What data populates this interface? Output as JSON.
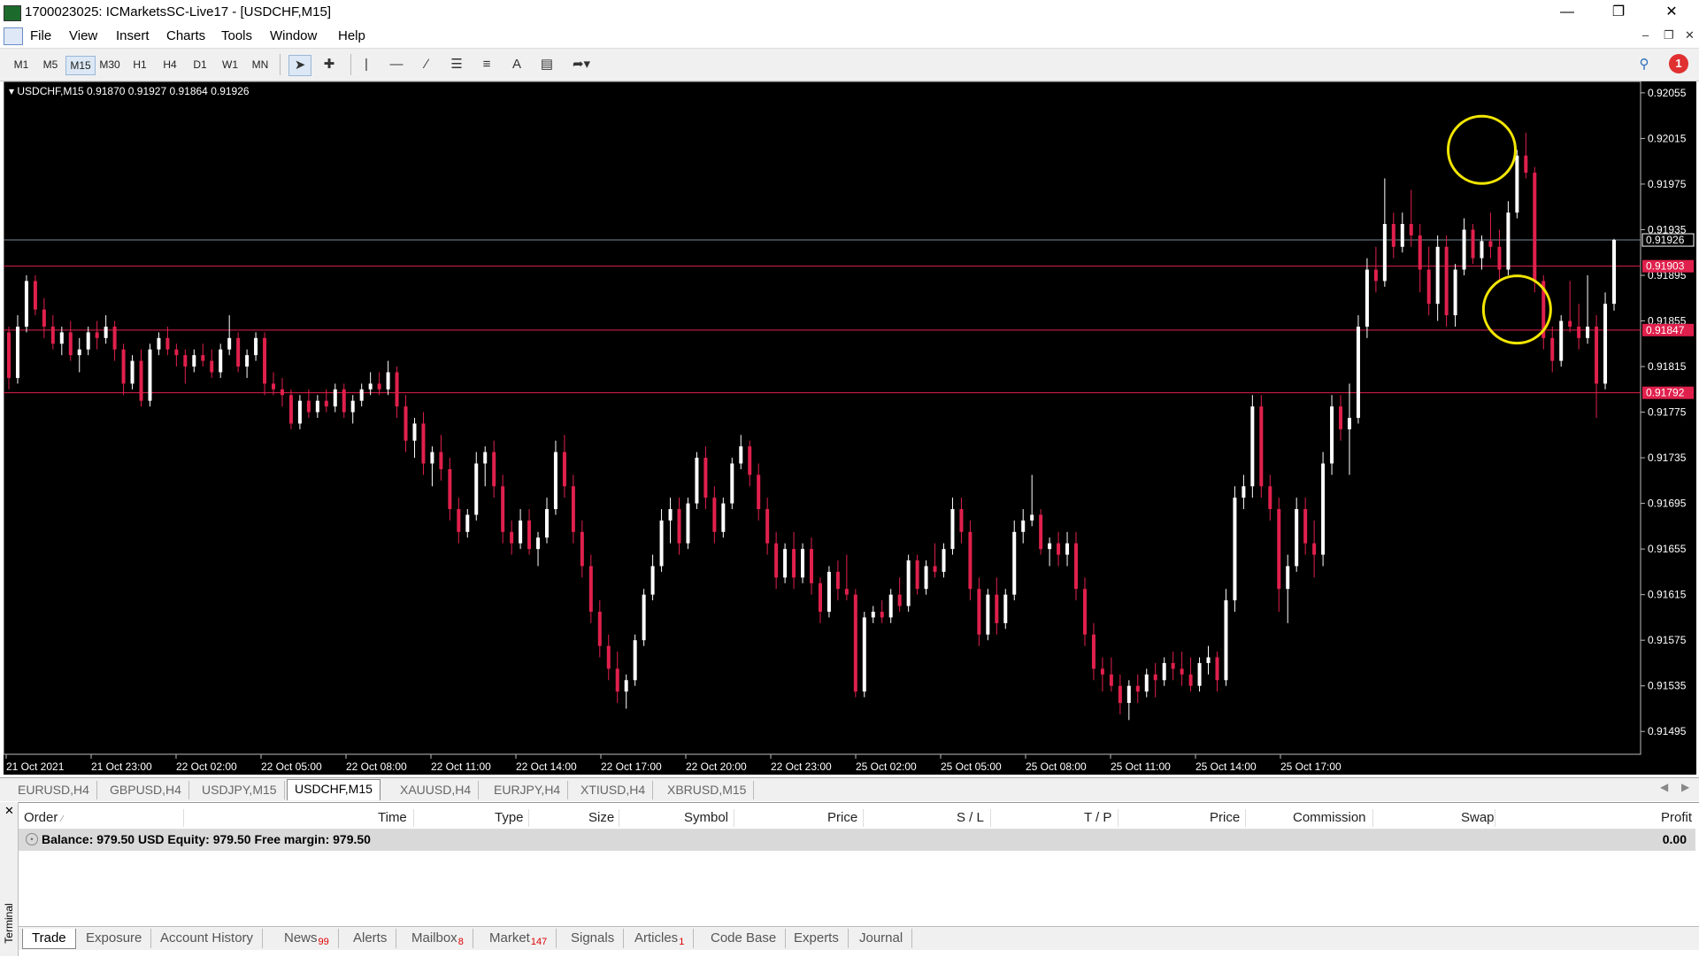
{
  "window": {
    "title": "1700023025: ICMarketsSC-Live17 - [USDCHF,M15]"
  },
  "menu": [
    "File",
    "View",
    "Insert",
    "Charts",
    "Tools",
    "Window",
    "Help"
  ],
  "timeframes": [
    "M1",
    "M5",
    "M15",
    "M30",
    "H1",
    "H4",
    "D1",
    "W1",
    "MN"
  ],
  "active_timeframe": "M15",
  "notification_count": "1",
  "chart": {
    "header": "USDCHF,M15  0.91870 0.91927 0.91864 0.91926",
    "background": "#000000",
    "bull_color": "#ffffff",
    "bear_color": "#e0204c",
    "level_color": "#e0204c",
    "highlight_color": "#f2e600"
  },
  "chart_data": {
    "type": "candlestick",
    "symbol": "USDCHF",
    "timeframe": "M15",
    "ylim": [
      0.91475,
      0.92065
    ],
    "y_ticks": [
      "0.92055",
      "0.92015",
      "0.91975",
      "0.91935",
      "0.91895",
      "0.91855",
      "0.91815",
      "0.91775",
      "0.91735",
      "0.91695",
      "0.91655",
      "0.91615",
      "0.91575",
      "0.91535",
      "0.91495"
    ],
    "x_ticks": [
      "21 Oct 2021",
      "21 Oct 23:00",
      "22 Oct 02:00",
      "22 Oct 05:00",
      "22 Oct 08:00",
      "22 Oct 11:00",
      "22 Oct 14:00",
      "22 Oct 17:00",
      "22 Oct 20:00",
      "22 Oct 23:00",
      "25 Oct 02:00",
      "25 Oct 05:00",
      "25 Oct 08:00",
      "25 Oct 11:00",
      "25 Oct 14:00",
      "25 Oct 17:00"
    ],
    "price_levels": [
      "0.91903",
      "0.91847",
      "0.91792"
    ],
    "bid_line": "0.91926",
    "highlights": [
      {
        "x_index": 167,
        "price": 0.92005
      },
      {
        "x_index": 171,
        "price": 0.91865
      }
    ],
    "candles": [
      [
        0.91845,
        0.9185,
        0.91795,
        0.91805
      ],
      [
        0.91805,
        0.9186,
        0.918,
        0.9185
      ],
      [
        0.9185,
        0.91895,
        0.91845,
        0.9189
      ],
      [
        0.9189,
        0.91895,
        0.9186,
        0.91865
      ],
      [
        0.91865,
        0.91875,
        0.9184,
        0.9185
      ],
      [
        0.9185,
        0.9186,
        0.9183,
        0.91835
      ],
      [
        0.91835,
        0.9185,
        0.91825,
        0.91845
      ],
      [
        0.91845,
        0.91855,
        0.9182,
        0.91825
      ],
      [
        0.91825,
        0.9184,
        0.9181,
        0.9183
      ],
      [
        0.9183,
        0.9185,
        0.91825,
        0.91845
      ],
      [
        0.91845,
        0.91855,
        0.9183,
        0.9184
      ],
      [
        0.9184,
        0.9186,
        0.91835,
        0.9185
      ],
      [
        0.9185,
        0.91855,
        0.9182,
        0.9183
      ],
      [
        0.9183,
        0.91835,
        0.9179,
        0.918
      ],
      [
        0.918,
        0.91825,
        0.91795,
        0.9182
      ],
      [
        0.9182,
        0.9183,
        0.9178,
        0.91785
      ],
      [
        0.91785,
        0.91835,
        0.9178,
        0.9183
      ],
      [
        0.9183,
        0.91845,
        0.91825,
        0.9184
      ],
      [
        0.9184,
        0.9185,
        0.91825,
        0.9183
      ],
      [
        0.9183,
        0.91835,
        0.91815,
        0.91825
      ],
      [
        0.91825,
        0.9183,
        0.918,
        0.91815
      ],
      [
        0.91815,
        0.9183,
        0.9181,
        0.91825
      ],
      [
        0.91825,
        0.91835,
        0.91815,
        0.9182
      ],
      [
        0.9182,
        0.9183,
        0.91805,
        0.9181
      ],
      [
        0.9181,
        0.91835,
        0.91805,
        0.9183
      ],
      [
        0.9183,
        0.9186,
        0.91825,
        0.9184
      ],
      [
        0.9184,
        0.91845,
        0.9181,
        0.91815
      ],
      [
        0.91815,
        0.9183,
        0.91805,
        0.91825
      ],
      [
        0.91825,
        0.91845,
        0.9182,
        0.9184
      ],
      [
        0.9184,
        0.91845,
        0.9179,
        0.918
      ],
      [
        0.918,
        0.9181,
        0.9179,
        0.91795
      ],
      [
        0.91795,
        0.91805,
        0.9178,
        0.9179
      ],
      [
        0.9179,
        0.91795,
        0.9176,
        0.91765
      ],
      [
        0.91765,
        0.9179,
        0.9176,
        0.91785
      ],
      [
        0.91785,
        0.91795,
        0.9177,
        0.91775
      ],
      [
        0.91775,
        0.9179,
        0.9177,
        0.91785
      ],
      [
        0.91785,
        0.91795,
        0.91775,
        0.9178
      ],
      [
        0.9178,
        0.918,
        0.91775,
        0.91795
      ],
      [
        0.91795,
        0.918,
        0.9177,
        0.91775
      ],
      [
        0.91775,
        0.9179,
        0.91765,
        0.91785
      ],
      [
        0.91785,
        0.918,
        0.9178,
        0.91795
      ],
      [
        0.91795,
        0.9181,
        0.9179,
        0.918
      ],
      [
        0.918,
        0.9181,
        0.9179,
        0.91795
      ],
      [
        0.91795,
        0.9182,
        0.9179,
        0.9181
      ],
      [
        0.9181,
        0.91815,
        0.9177,
        0.9178
      ],
      [
        0.9178,
        0.9179,
        0.9174,
        0.9175
      ],
      [
        0.9175,
        0.9177,
        0.91735,
        0.91765
      ],
      [
        0.91765,
        0.91775,
        0.9172,
        0.9173
      ],
      [
        0.9173,
        0.91745,
        0.9171,
        0.9174
      ],
      [
        0.9174,
        0.91755,
        0.91715,
        0.91725
      ],
      [
        0.91725,
        0.91735,
        0.9168,
        0.9169
      ],
      [
        0.9169,
        0.917,
        0.9166,
        0.9167
      ],
      [
        0.9167,
        0.9169,
        0.91665,
        0.91685
      ],
      [
        0.91685,
        0.9174,
        0.9168,
        0.9173
      ],
      [
        0.9173,
        0.91745,
        0.9171,
        0.9174
      ],
      [
        0.9174,
        0.9175,
        0.917,
        0.9171
      ],
      [
        0.9171,
        0.9172,
        0.9166,
        0.9167
      ],
      [
        0.9167,
        0.9168,
        0.9165,
        0.9166
      ],
      [
        0.9166,
        0.9169,
        0.91655,
        0.9168
      ],
      [
        0.9168,
        0.9169,
        0.9165,
        0.91655
      ],
      [
        0.91655,
        0.9167,
        0.9164,
        0.91665
      ],
      [
        0.91665,
        0.917,
        0.9166,
        0.9169
      ],
      [
        0.9169,
        0.9175,
        0.91685,
        0.9174
      ],
      [
        0.9174,
        0.91755,
        0.917,
        0.9171
      ],
      [
        0.9171,
        0.9172,
        0.9166,
        0.9167
      ],
      [
        0.9167,
        0.9168,
        0.9163,
        0.9164
      ],
      [
        0.9164,
        0.9165,
        0.9159,
        0.916
      ],
      [
        0.916,
        0.9161,
        0.9156,
        0.9157
      ],
      [
        0.9157,
        0.9158,
        0.9154,
        0.9155
      ],
      [
        0.9155,
        0.91565,
        0.9152,
        0.9153
      ],
      [
        0.9153,
        0.91545,
        0.91515,
        0.9154
      ],
      [
        0.9154,
        0.9158,
        0.91535,
        0.91575
      ],
      [
        0.91575,
        0.9162,
        0.9157,
        0.91615
      ],
      [
        0.91615,
        0.9165,
        0.9161,
        0.9164
      ],
      [
        0.9164,
        0.9169,
        0.91635,
        0.9168
      ],
      [
        0.9168,
        0.917,
        0.9166,
        0.9169
      ],
      [
        0.9169,
        0.917,
        0.9165,
        0.9166
      ],
      [
        0.9166,
        0.917,
        0.91655,
        0.91695
      ],
      [
        0.91695,
        0.9174,
        0.9169,
        0.91735
      ],
      [
        0.91735,
        0.91745,
        0.9169,
        0.917
      ],
      [
        0.917,
        0.9171,
        0.9166,
        0.9167
      ],
      [
        0.9167,
        0.917,
        0.91665,
        0.91695
      ],
      [
        0.91695,
        0.91735,
        0.9169,
        0.9173
      ],
      [
        0.9173,
        0.91755,
        0.91725,
        0.91745
      ],
      [
        0.91745,
        0.9175,
        0.9171,
        0.9172
      ],
      [
        0.9172,
        0.9173,
        0.9168,
        0.9169
      ],
      [
        0.9169,
        0.917,
        0.9165,
        0.9166
      ],
      [
        0.9166,
        0.9167,
        0.9162,
        0.9163
      ],
      [
        0.9163,
        0.9166,
        0.91625,
        0.91655
      ],
      [
        0.91655,
        0.9167,
        0.9162,
        0.9163
      ],
      [
        0.9163,
        0.9166,
        0.91625,
        0.91655
      ],
      [
        0.91655,
        0.91665,
        0.91615,
        0.91625
      ],
      [
        0.91625,
        0.9163,
        0.9159,
        0.916
      ],
      [
        0.916,
        0.9164,
        0.91595,
        0.91635
      ],
      [
        0.91635,
        0.91645,
        0.9161,
        0.9162
      ],
      [
        0.9162,
        0.9165,
        0.9161,
        0.91615
      ],
      [
        0.91615,
        0.9162,
        0.91525,
        0.9153
      ],
      [
        0.9153,
        0.916,
        0.91525,
        0.91595
      ],
      [
        0.91595,
        0.91605,
        0.9159,
        0.916
      ],
      [
        0.916,
        0.9161,
        0.9159,
        0.91595
      ],
      [
        0.91595,
        0.9162,
        0.9159,
        0.91615
      ],
      [
        0.91615,
        0.9163,
        0.916,
        0.91605
      ],
      [
        0.91605,
        0.9165,
        0.916,
        0.91645
      ],
      [
        0.91645,
        0.9165,
        0.91615,
        0.9162
      ],
      [
        0.9162,
        0.91645,
        0.91615,
        0.9164
      ],
      [
        0.9164,
        0.9166,
        0.9163,
        0.91635
      ],
      [
        0.91635,
        0.9166,
        0.9163,
        0.91655
      ],
      [
        0.91655,
        0.917,
        0.9165,
        0.9169
      ],
      [
        0.9169,
        0.917,
        0.9166,
        0.9167
      ],
      [
        0.9167,
        0.9168,
        0.9161,
        0.9162
      ],
      [
        0.9162,
        0.9163,
        0.9157,
        0.9158
      ],
      [
        0.9158,
        0.9162,
        0.91575,
        0.91615
      ],
      [
        0.91615,
        0.9163,
        0.9158,
        0.9159
      ],
      [
        0.9159,
        0.9162,
        0.91585,
        0.91615
      ],
      [
        0.91615,
        0.9168,
        0.9161,
        0.9167
      ],
      [
        0.9167,
        0.9169,
        0.9166,
        0.9168
      ],
      [
        0.9168,
        0.9172,
        0.91675,
        0.91685
      ],
      [
        0.91685,
        0.9169,
        0.9165,
        0.91655
      ],
      [
        0.91655,
        0.91665,
        0.9164,
        0.9166
      ],
      [
        0.9166,
        0.9167,
        0.9164,
        0.9165
      ],
      [
        0.9165,
        0.9167,
        0.9164,
        0.9166
      ],
      [
        0.9166,
        0.9167,
        0.9161,
        0.9162
      ],
      [
        0.9162,
        0.9163,
        0.9157,
        0.9158
      ],
      [
        0.9158,
        0.9159,
        0.9154,
        0.9155
      ],
      [
        0.9155,
        0.9156,
        0.9153,
        0.91545
      ],
      [
        0.91545,
        0.9156,
        0.9153,
        0.91535
      ],
      [
        0.91535,
        0.91545,
        0.9151,
        0.9152
      ],
      [
        0.9152,
        0.9154,
        0.91505,
        0.91535
      ],
      [
        0.91535,
        0.91545,
        0.9152,
        0.9153
      ],
      [
        0.9153,
        0.9155,
        0.91525,
        0.91545
      ],
      [
        0.91545,
        0.91555,
        0.91525,
        0.9154
      ],
      [
        0.9154,
        0.9156,
        0.91535,
        0.91555
      ],
      [
        0.91555,
        0.91565,
        0.9154,
        0.9155
      ],
      [
        0.9155,
        0.91565,
        0.91535,
        0.91545
      ],
      [
        0.91545,
        0.9156,
        0.9153,
        0.91535
      ],
      [
        0.91535,
        0.9156,
        0.9153,
        0.91555
      ],
      [
        0.91555,
        0.9157,
        0.91545,
        0.9156
      ],
      [
        0.9156,
        0.91565,
        0.9153,
        0.9154
      ],
      [
        0.9154,
        0.9162,
        0.91535,
        0.9161
      ],
      [
        0.9161,
        0.9171,
        0.916,
        0.917
      ],
      [
        0.917,
        0.9172,
        0.9169,
        0.9171
      ],
      [
        0.9171,
        0.9179,
        0.917,
        0.9178
      ],
      [
        0.9178,
        0.9179,
        0.917,
        0.9171
      ],
      [
        0.9171,
        0.9172,
        0.9168,
        0.9169
      ],
      [
        0.9169,
        0.917,
        0.916,
        0.9162
      ],
      [
        0.9162,
        0.9165,
        0.9159,
        0.9164
      ],
      [
        0.9164,
        0.917,
        0.91635,
        0.9169
      ],
      [
        0.9169,
        0.917,
        0.9165,
        0.9166
      ],
      [
        0.9166,
        0.9168,
        0.9163,
        0.9165
      ],
      [
        0.9165,
        0.9174,
        0.9164,
        0.9173
      ],
      [
        0.9173,
        0.9179,
        0.9172,
        0.9178
      ],
      [
        0.9178,
        0.9179,
        0.9175,
        0.9176
      ],
      [
        0.9176,
        0.918,
        0.9172,
        0.9177
      ],
      [
        0.9177,
        0.9186,
        0.91765,
        0.9185
      ],
      [
        0.9185,
        0.9191,
        0.9184,
        0.919
      ],
      [
        0.919,
        0.9192,
        0.9188,
        0.9189
      ],
      [
        0.9189,
        0.9198,
        0.91885,
        0.9194
      ],
      [
        0.9194,
        0.9195,
        0.9191,
        0.9192
      ],
      [
        0.9192,
        0.9195,
        0.91915,
        0.9194
      ],
      [
        0.9194,
        0.9197,
        0.9192,
        0.9193
      ],
      [
        0.9193,
        0.9194,
        0.9188,
        0.919
      ],
      [
        0.919,
        0.9192,
        0.9186,
        0.9187
      ],
      [
        0.9187,
        0.9193,
        0.91855,
        0.9192
      ],
      [
        0.9192,
        0.9193,
        0.9185,
        0.9186
      ],
      [
        0.9186,
        0.91905,
        0.9185,
        0.919
      ],
      [
        0.919,
        0.91945,
        0.91895,
        0.91935
      ],
      [
        0.91935,
        0.9194,
        0.91905,
        0.9191
      ],
      [
        0.9191,
        0.9193,
        0.919,
        0.91925
      ],
      [
        0.91925,
        0.9195,
        0.9191,
        0.9192
      ],
      [
        0.9192,
        0.91935,
        0.9189,
        0.919
      ],
      [
        0.919,
        0.9196,
        0.91895,
        0.9195
      ],
      [
        0.9195,
        0.92005,
        0.91945,
        0.92
      ],
      [
        0.92,
        0.9202,
        0.9198,
        0.91985
      ],
      [
        0.91985,
        0.9199,
        0.9188,
        0.9189
      ],
      [
        0.9189,
        0.91895,
        0.9183,
        0.9184
      ],
      [
        0.9184,
        0.9185,
        0.9181,
        0.9182
      ],
      [
        0.9182,
        0.9186,
        0.91815,
        0.91855
      ],
      [
        0.91855,
        0.9189,
        0.91845,
        0.9185
      ],
      [
        0.9185,
        0.9187,
        0.9183,
        0.9184
      ],
      [
        0.9184,
        0.91895,
        0.91835,
        0.9185
      ],
      [
        0.9185,
        0.9186,
        0.9177,
        0.918
      ],
      [
        0.918,
        0.9188,
        0.91795,
        0.9187
      ],
      [
        0.9187,
        0.91927,
        0.91864,
        0.91926
      ]
    ]
  },
  "chart_tabs": [
    "EURUSD,H4",
    "GBPUSD,H4",
    "USDJPY,M15",
    "USDCHF,M15",
    "XAUUSD,H4",
    "EURJPY,H4",
    "XTIUSD,H4",
    "XBRUSD,M15"
  ],
  "active_chart_tab": "USDCHF,M15",
  "terminal": {
    "side_label": "Terminal",
    "columns": [
      "Order",
      "Time",
      "Type",
      "Size",
      "Symbol",
      "Price",
      "S / L",
      "T / P",
      "Price",
      "Commission",
      "Swap",
      "Profit"
    ],
    "balance_text": "Balance: 979.50 USD  Equity: 979.50  Free margin: 979.50",
    "profit": "0.00",
    "tabs": [
      {
        "label": "Trade",
        "badge": ""
      },
      {
        "label": "Exposure",
        "badge": ""
      },
      {
        "label": "Account History",
        "badge": ""
      },
      {
        "label": "News",
        "badge": "99"
      },
      {
        "label": "Alerts",
        "badge": ""
      },
      {
        "label": "Mailbox",
        "badge": "8"
      },
      {
        "label": "Market",
        "badge": "147"
      },
      {
        "label": "Signals",
        "badge": ""
      },
      {
        "label": "Articles",
        "badge": "1"
      },
      {
        "label": "Code Base",
        "badge": ""
      },
      {
        "label": "Experts",
        "badge": ""
      },
      {
        "label": "Journal",
        "badge": ""
      }
    ],
    "active_tab": "Trade"
  }
}
